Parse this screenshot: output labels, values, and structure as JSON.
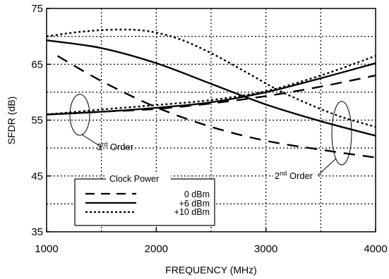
{
  "chart_data": {
    "type": "line",
    "xlabel": "FREQUENCY (MHz)",
    "ylabel": "SFDR (dB)",
    "xlim": [
      1000,
      4000
    ],
    "ylim": [
      35,
      75
    ],
    "x_ticks": [
      1000,
      2000,
      3000,
      4000
    ],
    "y_ticks": [
      35,
      45,
      55,
      65,
      75
    ],
    "grid": true,
    "legend_placement": "bottom-left",
    "legend": {
      "title": "Clock Power",
      "entries": [
        {
          "label": "0 dBm",
          "style": "dashed"
        },
        {
          "label": "+6 dBm",
          "style": "solid"
        },
        {
          "label": "+10 dBm",
          "style": "dotted"
        }
      ]
    },
    "annotations": [
      {
        "base": "3",
        "sup": "rd",
        "text": " Order"
      },
      {
        "base": "2",
        "sup": "nd",
        "text": " Order"
      }
    ],
    "series": [
      {
        "name": "0 dBm",
        "group": "2nd Order",
        "style": "dashed",
        "x": [
          1100,
          1500,
          2000,
          2500,
          3000,
          3500,
          4000
        ],
        "y": [
          66.5,
          62.0,
          57.3,
          53.8,
          51.3,
          49.7,
          48.3
        ]
      },
      {
        "name": "0 dBm",
        "group": "3rd Order",
        "style": "dashed",
        "x": [
          1000,
          1500,
          2000,
          2500,
          3000,
          3500,
          4000
        ],
        "y": [
          56.0,
          56.5,
          57.0,
          58.0,
          59.3,
          61.0,
          63.0
        ]
      },
      {
        "name": "+6 dBm",
        "group": "2nd Order",
        "style": "solid",
        "x": [
          1000,
          1500,
          2000,
          2500,
          3000,
          3500,
          4000
        ],
        "y": [
          69.3,
          67.9,
          65.2,
          61.5,
          57.8,
          54.8,
          52.2
        ]
      },
      {
        "name": "+6 dBm",
        "group": "3rd Order",
        "style": "solid",
        "x": [
          1000,
          1500,
          2000,
          2500,
          3000,
          3500,
          4000
        ],
        "y": [
          56.0,
          56.5,
          57.2,
          58.2,
          60.0,
          62.5,
          65.2
        ]
      },
      {
        "name": "+10 dBm",
        "group": "2nd Order",
        "style": "dotted",
        "x": [
          1000,
          1300,
          1600,
          1900,
          2200,
          2500,
          2800,
          3100,
          3400,
          3700,
          4000
        ],
        "y": [
          70.0,
          70.8,
          71.2,
          71.0,
          69.6,
          67.0,
          63.8,
          60.5,
          57.8,
          55.5,
          53.8
        ]
      },
      {
        "name": "+10 dBm",
        "group": "3rd Order",
        "style": "dotted",
        "x": [
          1000,
          1500,
          2000,
          2500,
          3000,
          3500,
          4000
        ],
        "y": [
          56.0,
          56.9,
          57.7,
          58.6,
          60.2,
          63.0,
          66.5
        ]
      }
    ]
  }
}
